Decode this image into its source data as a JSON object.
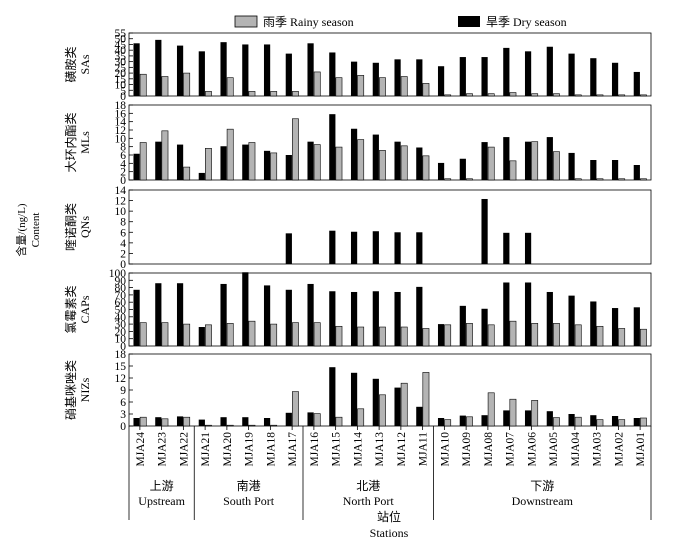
{
  "legend": {
    "rainy_label": "雨季 Rainy season",
    "dry_label": "旱季 Dry season",
    "rainy_color": "#b4b4b4",
    "dry_color": "#000000"
  },
  "y_axis_title": {
    "cn": "含量/(ng/L)",
    "en": "Content"
  },
  "x_axis_title": {
    "cn": "站位",
    "en": "Stations"
  },
  "chart_data": [
    {
      "type": "bar",
      "ylabel_cn": "磺胺类",
      "ylabel_en": "SAs",
      "ylim": [
        0,
        55
      ],
      "yticks": [
        0,
        5,
        10,
        15,
        20,
        25,
        30,
        35,
        40,
        45,
        50,
        55
      ],
      "categories": [
        "MJA24",
        "MJA23",
        "MJA22",
        "MJA21",
        "MJA20",
        "MJA19",
        "MJA18",
        "MJA17",
        "MJA16",
        "MJA15",
        "MJA14",
        "MJA13",
        "MJA12",
        "MJA11",
        "MJA10",
        "MJA09",
        "MJA08",
        "MJA07",
        "MJA06",
        "MJA05",
        "MJA04",
        "MJA03",
        "MJA02",
        "MJA01"
      ],
      "series": [
        {
          "name": "旱季 Dry season",
          "values": [
            46,
            49,
            44,
            39,
            47,
            45,
            45,
            37,
            46,
            38,
            30,
            29,
            32,
            32,
            26,
            34,
            34,
            42,
            39,
            43,
            37,
            33,
            29,
            21
          ]
        },
        {
          "name": "雨季 Rainy season",
          "values": [
            19,
            17,
            20,
            4,
            16,
            4,
            4,
            4,
            21,
            16,
            18,
            16,
            17,
            11,
            1,
            2,
            2,
            3,
            2,
            2,
            1,
            1,
            1,
            1
          ]
        }
      ]
    },
    {
      "type": "bar",
      "ylabel_cn": "大环内酯类",
      "ylabel_en": "MLs",
      "ylim": [
        0,
        18
      ],
      "yticks": [
        0,
        2,
        4,
        6,
        8,
        10,
        12,
        14,
        16,
        18
      ],
      "categories": [
        "MJA24",
        "MJA23",
        "MJA22",
        "MJA21",
        "MJA20",
        "MJA19",
        "MJA18",
        "MJA17",
        "MJA16",
        "MJA15",
        "MJA14",
        "MJA13",
        "MJA12",
        "MJA11",
        "MJA10",
        "MJA09",
        "MJA08",
        "MJA07",
        "MJA06",
        "MJA05",
        "MJA04",
        "MJA03",
        "MJA02",
        "MJA01"
      ],
      "series": [
        {
          "name": "旱季 Dry season",
          "values": [
            6.3,
            9.2,
            8.5,
            1.7,
            8.1,
            8.5,
            7.0,
            6.0,
            9.2,
            15.8,
            12.3,
            10.9,
            9.2,
            7.8,
            4.1,
            5.1,
            9.1,
            10.3,
            9.2,
            10.3,
            6.5,
            4.8,
            4.8,
            3.6
          ]
        },
        {
          "name": "雨季 Rainy season",
          "values": [
            9.0,
            11.8,
            3.1,
            7.6,
            12.2,
            9.0,
            6.5,
            14.7,
            8.5,
            7.9,
            9.7,
            7.1,
            8.2,
            5.8,
            0.3,
            0.3,
            7.9,
            4.6,
            9.2,
            6.8,
            0.3,
            0.3,
            0.3,
            0.3
          ]
        }
      ]
    },
    {
      "type": "bar",
      "ylabel_cn": "喹诺酮类",
      "ylabel_en": "QNs",
      "ylim": [
        0,
        14
      ],
      "yticks": [
        0,
        2,
        4,
        6,
        8,
        10,
        12,
        14
      ],
      "categories": [
        "MJA24",
        "MJA23",
        "MJA22",
        "MJA21",
        "MJA20",
        "MJA19",
        "MJA18",
        "MJA17",
        "MJA16",
        "MJA15",
        "MJA14",
        "MJA13",
        "MJA12",
        "MJA11",
        "MJA10",
        "MJA09",
        "MJA08",
        "MJA07",
        "MJA06",
        "MJA05",
        "MJA04",
        "MJA03",
        "MJA02",
        "MJA01"
      ],
      "series": [
        {
          "name": "旱季 Dry season",
          "values": [
            0,
            0,
            0,
            0,
            0,
            0,
            0,
            5.8,
            0,
            6.3,
            6.1,
            6.2,
            6.0,
            6.0,
            0,
            0,
            12.3,
            5.9,
            5.9,
            0,
            0,
            0,
            0,
            0
          ]
        },
        {
          "name": "雨季 Rainy season",
          "values": [
            0,
            0,
            0,
            0,
            0,
            0,
            0,
            0,
            0,
            0,
            0,
            0,
            0,
            0,
            0,
            0,
            0,
            0,
            0,
            0,
            0,
            0,
            0,
            0
          ]
        }
      ]
    },
    {
      "type": "bar",
      "ylabel_cn": "氯霉素类",
      "ylabel_en": "CAPs",
      "ylim": [
        0,
        100
      ],
      "yticks": [
        0,
        10,
        20,
        30,
        40,
        50,
        60,
        70,
        80,
        90,
        100
      ],
      "categories": [
        "MJA24",
        "MJA23",
        "MJA22",
        "MJA21",
        "MJA20",
        "MJA19",
        "MJA18",
        "MJA17",
        "MJA16",
        "MJA15",
        "MJA14",
        "MJA13",
        "MJA12",
        "MJA11",
        "MJA10",
        "MJA09",
        "MJA08",
        "MJA07",
        "MJA06",
        "MJA05",
        "MJA04",
        "MJA03",
        "MJA02",
        "MJA01"
      ],
      "series": [
        {
          "name": "旱季 Dry season",
          "values": [
            77,
            86,
            86,
            26,
            85,
            101,
            83,
            77,
            85,
            75,
            74,
            75,
            74,
            81,
            30,
            55,
            51,
            87,
            87,
            74,
            69,
            61,
            52,
            53
          ]
        },
        {
          "name": "雨季 Rainy season",
          "values": [
            32,
            32,
            30,
            29,
            31,
            34,
            30,
            32,
            32,
            27,
            26,
            26,
            26,
            24,
            29,
            31,
            29,
            34,
            31,
            31,
            29,
            27,
            24,
            23
          ]
        }
      ]
    },
    {
      "type": "bar",
      "ylabel_cn": "硝基咪唑类",
      "ylabel_en": "NIZs",
      "ylim": [
        0,
        18
      ],
      "yticks": [
        0,
        3,
        6,
        9,
        12,
        15,
        18
      ],
      "categories": [
        "MJA24",
        "MJA23",
        "MJA22",
        "MJA21",
        "MJA20",
        "MJA19",
        "MJA18",
        "MJA17",
        "MJA16",
        "MJA15",
        "MJA14",
        "MJA13",
        "MJA12",
        "MJA11",
        "MJA10",
        "MJA09",
        "MJA08",
        "MJA07",
        "MJA06",
        "MJA05",
        "MJA04",
        "MJA03",
        "MJA02",
        "MJA01"
      ],
      "series": [
        {
          "name": "旱季 Dry season",
          "values": [
            2.0,
            2.2,
            2.4,
            1.6,
            2.2,
            2.2,
            2.0,
            3.3,
            3.4,
            14.7,
            13.3,
            11.8,
            9.6,
            4.8,
            2.0,
            2.6,
            2.7,
            3.9,
            3.9,
            3.7,
            3.0,
            2.7,
            2.5,
            2.0
          ]
        },
        {
          "name": "雨季 Rainy season",
          "values": [
            2.2,
            1.8,
            2.2,
            0.2,
            0.2,
            0.2,
            0.2,
            8.6,
            3.1,
            2.2,
            4.3,
            7.8,
            10.7,
            13.4,
            1.6,
            2.3,
            8.3,
            6.7,
            6.4,
            2.1,
            2.2,
            1.6,
            1.6,
            2.0
          ]
        }
      ]
    }
  ],
  "groups": [
    {
      "cn": "上游",
      "en": "Upstream",
      "stations": [
        "MJA24",
        "MJA23",
        "MJA22"
      ]
    },
    {
      "cn": "南港",
      "en": "South Port",
      "stations": [
        "MJA21",
        "MJA20",
        "MJA19",
        "MJA18",
        "MJA17"
      ]
    },
    {
      "cn": "北港",
      "en": "North Port",
      "stations": [
        "MJA16",
        "MJA15",
        "MJA14",
        "MJA13",
        "MJA12",
        "MJA11"
      ]
    },
    {
      "cn": "下游",
      "en": "Downstream",
      "stations": [
        "MJA10",
        "MJA09",
        "MJA08",
        "MJA07",
        "MJA06",
        "MJA05",
        "MJA04",
        "MJA03",
        "MJA02",
        "MJA01"
      ]
    }
  ]
}
